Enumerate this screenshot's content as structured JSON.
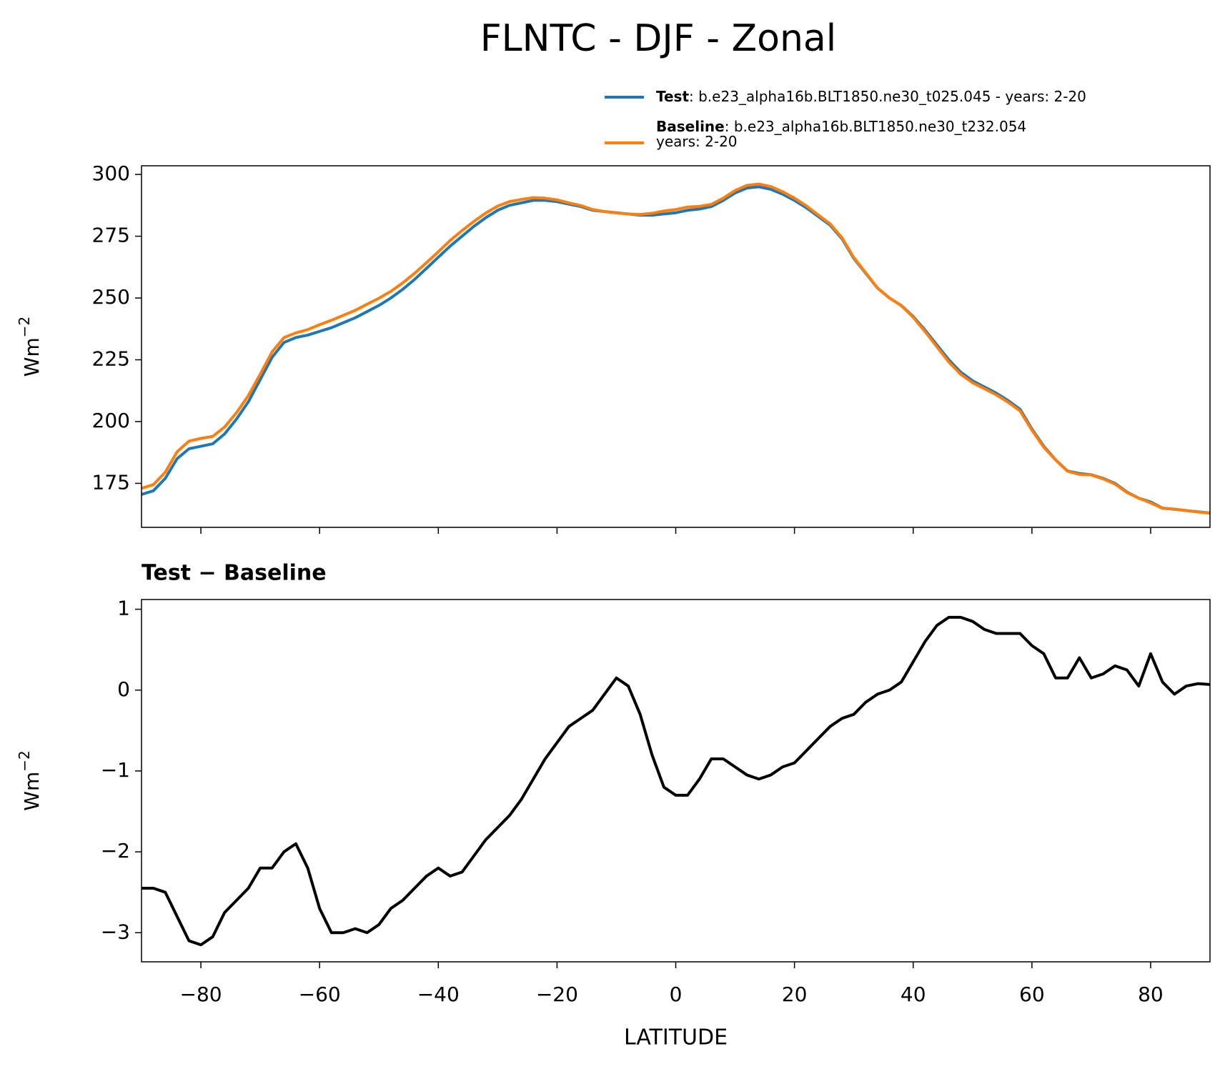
{
  "chart_data": [
    {
      "type": "line",
      "title": "FLNTC - DJF - Zonal",
      "ylabel": {
        "text": "Wm",
        "superscript": "−2"
      },
      "legend": "above right",
      "x": [
        -90,
        -88,
        -86,
        -84,
        -82,
        -80,
        -78,
        -76,
        -74,
        -72,
        -70,
        -68,
        -66,
        -64,
        -62,
        -60,
        -58,
        -56,
        -54,
        -52,
        -50,
        -48,
        -46,
        -44,
        -42,
        -40,
        -38,
        -36,
        -34,
        -32,
        -30,
        -28,
        -26,
        -24,
        -22,
        -20,
        -18,
        -16,
        -14,
        -12,
        -10,
        -8,
        -6,
        -4,
        -2,
        0,
        2,
        4,
        6,
        8,
        10,
        12,
        14,
        16,
        18,
        20,
        22,
        24,
        26,
        28,
        30,
        32,
        34,
        36,
        38,
        40,
        42,
        44,
        46,
        48,
        50,
        52,
        54,
        56,
        58,
        60,
        62,
        64,
        66,
        68,
        70,
        72,
        74,
        76,
        78,
        80,
        82,
        84,
        86,
        88,
        90
      ],
      "series": [
        {
          "name": "Test",
          "description": [
            ": b.e23_alpha16b.BLT1850.ne30_t025.045 - years: 2-20"
          ],
          "color": "#1f77b4",
          "values": [
            170.5,
            172,
            177,
            185,
            189,
            190,
            191,
            195,
            201,
            208,
            217,
            226,
            232,
            234,
            235,
            236.5,
            238,
            240,
            242,
            244.5,
            247,
            250,
            253.5,
            257.5,
            262,
            266.5,
            271,
            275,
            279,
            282.5,
            285.5,
            287.5,
            288.5,
            289.5,
            289.5,
            289,
            288,
            287,
            285.5,
            285,
            284.5,
            284,
            283.5,
            283.5,
            284,
            284.5,
            285.5,
            286,
            287,
            289.5,
            292.5,
            294.5,
            295,
            294,
            292,
            289.5,
            286.5,
            283,
            279.5,
            274,
            266,
            260,
            254,
            250,
            247,
            242.5,
            237,
            231,
            225,
            220,
            216.5,
            214,
            211.5,
            208.5,
            205,
            197,
            190,
            184.5,
            180,
            179,
            178.5,
            177,
            175,
            171.5,
            169,
            167.5,
            165,
            164.5,
            164,
            163.5,
            163
          ]
        },
        {
          "name": "Baseline",
          "description": [
            ": b.e23_alpha16b.BLT1850.ne30_t232.054",
            "years: 2-20"
          ],
          "color": "#ff7f0e",
          "values": [
            173,
            174.5,
            179.5,
            187.8,
            192.1,
            193.2,
            194,
            197.8,
            203.6,
            210.5,
            219.2,
            228.2,
            234,
            235.9,
            237.2,
            239.2,
            241,
            243,
            245,
            247.5,
            249.9,
            252.7,
            256.1,
            260,
            264.3,
            268.7,
            273.3,
            277.3,
            281,
            284.4,
            287.2,
            289,
            289.9,
            290.6,
            290.4,
            289.7,
            288.5,
            287.4,
            285.8,
            285,
            284.4,
            284,
            283.8,
            284.3,
            285.2,
            285.8,
            286.8,
            287.1,
            287.9,
            290.4,
            293.5,
            295.6,
            296.1,
            295.1,
            293,
            290.4,
            287.3,
            283.6,
            280,
            274.4,
            266.3,
            260.2,
            254,
            250,
            246.9,
            242.2,
            236.4,
            230.2,
            224.1,
            219.1,
            215.7,
            213.3,
            210.8,
            207.8,
            204.3,
            196.5,
            189.6,
            184.4,
            179.9,
            178.6,
            178.4,
            176.8,
            174.7,
            171.3,
            169,
            167.1,
            164.9,
            164.6,
            164,
            163.4,
            162.9
          ]
        }
      ],
      "xlim": [
        -90,
        90
      ],
      "xticks": [
        -80,
        -60,
        -40,
        -20,
        0,
        20,
        40,
        60,
        80
      ],
      "xtick_labels": false,
      "ylim": [
        157.2,
        303.5
      ],
      "yticks": [
        175,
        200,
        225,
        250,
        275,
        300
      ]
    },
    {
      "type": "line",
      "title": "Test − Baseline",
      "xlabel": "LATITUDE",
      "ylabel": {
        "text": "Wm",
        "superscript": "−2"
      },
      "x": [
        -90,
        -88,
        -86,
        -84,
        -82,
        -80,
        -78,
        -76,
        -74,
        -72,
        -70,
        -68,
        -66,
        -64,
        -62,
        -60,
        -58,
        -56,
        -54,
        -52,
        -50,
        -48,
        -46,
        -44,
        -42,
        -40,
        -38,
        -36,
        -34,
        -32,
        -30,
        -28,
        -26,
        -24,
        -22,
        -20,
        -18,
        -16,
        -14,
        -12,
        -10,
        -8,
        -6,
        -4,
        -2,
        0,
        2,
        4,
        6,
        8,
        10,
        12,
        14,
        16,
        18,
        20,
        22,
        24,
        26,
        28,
        30,
        32,
        34,
        36,
        38,
        40,
        42,
        44,
        46,
        48,
        50,
        52,
        54,
        56,
        58,
        60,
        62,
        64,
        66,
        68,
        70,
        72,
        74,
        76,
        78,
        80,
        82,
        84,
        86,
        88,
        90
      ],
      "series": [
        {
          "color": "#000000",
          "values": [
            -2.45,
            -2.45,
            -2.5,
            -2.8,
            -3.1,
            -3.15,
            -3.05,
            -2.75,
            -2.6,
            -2.45,
            -2.2,
            -2.2,
            -2.0,
            -1.9,
            -2.2,
            -2.7,
            -3.0,
            -3.0,
            -2.95,
            -3.0,
            -2.9,
            -2.7,
            -2.6,
            -2.45,
            -2.3,
            -2.2,
            -2.3,
            -2.25,
            -2.05,
            -1.85,
            -1.7,
            -1.55,
            -1.35,
            -1.1,
            -0.85,
            -0.65,
            -0.45,
            -0.35,
            -0.25,
            -0.05,
            0.15,
            0.05,
            -0.3,
            -0.8,
            -1.2,
            -1.3,
            -1.3,
            -1.1,
            -0.85,
            -0.85,
            -0.95,
            -1.05,
            -1.1,
            -1.05,
            -0.95,
            -0.9,
            -0.75,
            -0.6,
            -0.45,
            -0.35,
            -0.3,
            -0.15,
            -0.05,
            0.0,
            0.1,
            0.35,
            0.6,
            0.8,
            0.9,
            0.9,
            0.85,
            0.75,
            0.7,
            0.7,
            0.7,
            0.55,
            0.45,
            0.15,
            0.15,
            0.4,
            0.15,
            0.2,
            0.3,
            0.25,
            0.05,
            0.45,
            0.1,
            -0.05,
            0.05,
            0.08,
            0.07
          ]
        }
      ],
      "xlim": [
        -90,
        90
      ],
      "xticks": [
        {
          "value": -80,
          "label": "−80"
        },
        {
          "value": -60,
          "label": "−60"
        },
        {
          "value": -40,
          "label": "−40"
        },
        {
          "value": -20,
          "label": "−20"
        },
        0,
        20,
        40,
        60,
        80
      ],
      "ylim": [
        -3.36,
        1.12
      ],
      "yticks": [
        {
          "value": -3,
          "label": "−3"
        },
        {
          "value": -2,
          "label": "−2"
        },
        {
          "value": -1,
          "label": "−1"
        },
        0,
        1
      ]
    }
  ]
}
